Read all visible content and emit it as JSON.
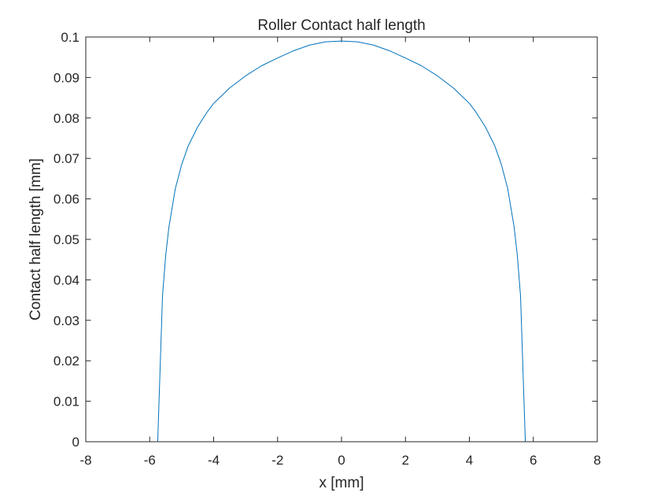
{
  "chart_data": {
    "type": "line",
    "title": "Roller Contact half length",
    "xlabel": "x [mm]",
    "ylabel": "Contact half length [mm]",
    "xlim": [
      -8,
      8
    ],
    "ylim": [
      0,
      0.1
    ],
    "x_ticks": [
      -8,
      -6,
      -4,
      -2,
      0,
      2,
      4,
      6,
      8
    ],
    "x_tick_labels": [
      "-8",
      "-6",
      "-4",
      "-2",
      "0",
      "2",
      "4",
      "6",
      "8"
    ],
    "y_ticks": [
      0,
      0.01,
      0.02,
      0.03,
      0.04,
      0.05,
      0.06,
      0.07,
      0.08,
      0.09,
      0.1
    ],
    "y_tick_labels": [
      "0",
      "0.01",
      "0.02",
      "0.03",
      "0.04",
      "0.05",
      "0.06",
      "0.07",
      "0.08",
      "0.09",
      "0.1"
    ],
    "grid": false,
    "box": true,
    "series": [
      {
        "color": "#0072BD",
        "x": [
          -6.25,
          -5.75,
          -5.6,
          -5.5,
          -5.4,
          -5.2,
          -5.0,
          -4.8,
          -4.5,
          -4.2,
          -4.0,
          -3.5,
          -3.0,
          -2.5,
          -2.0,
          -1.5,
          -1.0,
          -0.5,
          0.0,
          0.5,
          1.0,
          1.5,
          2.0,
          2.5,
          3.0,
          3.5,
          4.0,
          4.2,
          4.5,
          4.8,
          5.0,
          5.2,
          5.4,
          5.5,
          5.6,
          5.75,
          6.25
        ],
        "y": [
          0.0,
          0.0,
          0.036,
          0.046,
          0.053,
          0.0625,
          0.0685,
          0.073,
          0.0778,
          0.0815,
          0.0836,
          0.0874,
          0.0904,
          0.0929,
          0.0948,
          0.0966,
          0.098,
          0.0988,
          0.099,
          0.0988,
          0.098,
          0.0966,
          0.0948,
          0.0929,
          0.0904,
          0.0874,
          0.0836,
          0.0815,
          0.0778,
          0.073,
          0.0685,
          0.0625,
          0.053,
          0.046,
          0.036,
          0.0,
          0.0
        ]
      }
    ]
  }
}
